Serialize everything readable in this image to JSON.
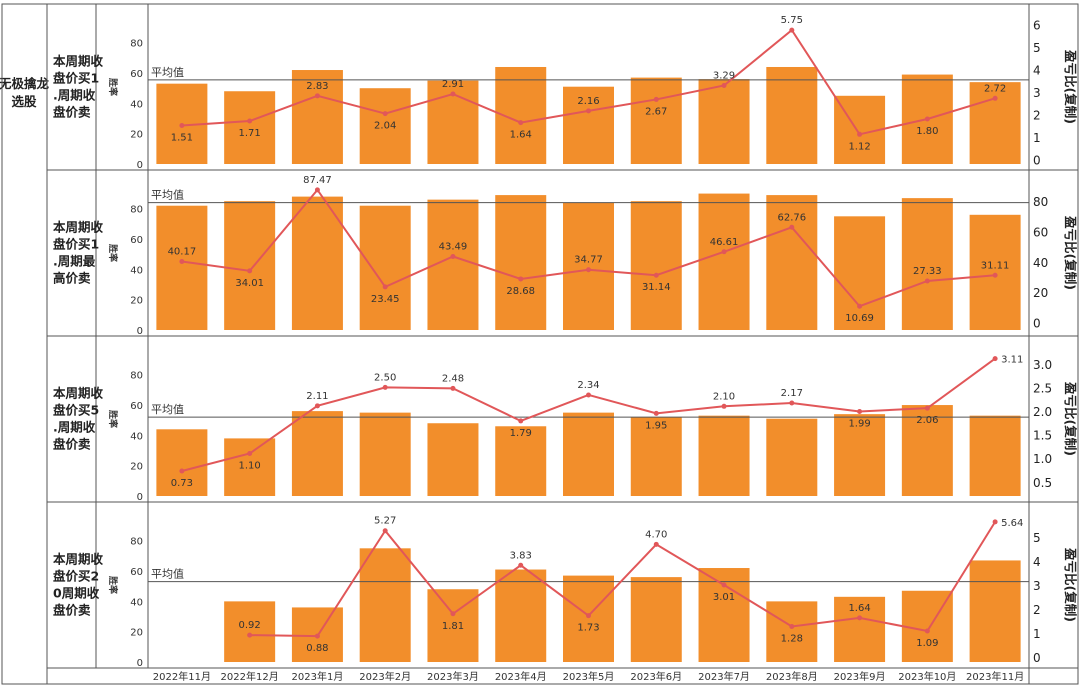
{
  "strategy_label": "无极擒龙选股",
  "y_axis_left_label": "胜率",
  "y_axis_right_label": "盈亏比(复制)",
  "avg_label": "平均值",
  "colors": {
    "bar": "#f28e2b",
    "line": "#e15759",
    "grid": "#555555"
  },
  "chart_data": [
    {
      "type": "bar",
      "row_label": "本周期收盘价买1.周期收盘价卖",
      "categories": [
        "2022年11月",
        "2022年12月",
        "2023年1月",
        "2023年2月",
        "2023年3月",
        "2023年4月",
        "2023年5月",
        "2023年6月",
        "2023年7月",
        "2023年8月",
        "2023年9月",
        "2023年10月",
        "2023年11月"
      ],
      "series": [
        {
          "axis": "left",
          "values": [
            53,
            48,
            62,
            50,
            55,
            64,
            51,
            57,
            56,
            64,
            45,
            59,
            54
          ]
        },
        {
          "axis": "right",
          "values": [
            1.51,
            1.71,
            2.83,
            2.04,
            2.91,
            1.64,
            2.16,
            2.67,
            3.29,
            5.75,
            1.12,
            1.8,
            2.72
          ]
        }
      ],
      "ylim": [
        0,
        95
      ],
      "y_ticks": [
        0,
        20,
        40,
        60,
        80
      ],
      "y2lim": [
        -0.2,
        6.2
      ],
      "y2_ticks": [
        0,
        1,
        2,
        3,
        4,
        5,
        6
      ],
      "avg_value": 55.5,
      "label_pos": [
        "below",
        "below",
        "above",
        "below",
        "above",
        "below",
        "above",
        "below",
        "above",
        "above",
        "below",
        "below",
        "above"
      ]
    },
    {
      "type": "bar",
      "row_label": "本周期收盘价买1.周期最高价卖",
      "categories": [
        "2022年11月",
        "2022年12月",
        "2023年1月",
        "2023年2月",
        "2023年3月",
        "2023年4月",
        "2023年5月",
        "2023年6月",
        "2023年7月",
        "2023年8月",
        "2023年9月",
        "2023年10月",
        "2023年11月"
      ],
      "series": [
        {
          "axis": "left",
          "values": [
            82,
            85,
            88,
            82,
            86,
            89,
            84,
            85,
            90,
            89,
            75,
            87,
            76
          ]
        },
        {
          "axis": "right",
          "values": [
            40.17,
            34.01,
            87.47,
            23.45,
            43.49,
            28.68,
            34.77,
            31.14,
            46.61,
            62.76,
            10.69,
            27.33,
            31.11
          ]
        }
      ],
      "ylim": [
        0,
        95
      ],
      "y_ticks": [
        0,
        20,
        40,
        60,
        80
      ],
      "y2lim": [
        -5,
        90
      ],
      "y2_ticks": [
        0,
        20,
        40,
        60,
        80
      ],
      "avg_value": 84,
      "label_pos": [
        "above",
        "below",
        "above",
        "below",
        "above",
        "below",
        "above",
        "below",
        "above",
        "above",
        "below",
        "above",
        "above"
      ]
    },
    {
      "type": "bar",
      "row_label": "本周期收盘价买5.周期收盘价卖",
      "categories": [
        "2022年11月",
        "2022年12月",
        "2023年1月",
        "2023年2月",
        "2023年3月",
        "2023年4月",
        "2023年5月",
        "2023年6月",
        "2023年7月",
        "2023年8月",
        "2023年9月",
        "2023年10月",
        "2023年11月"
      ],
      "series": [
        {
          "axis": "left",
          "values": [
            44,
            38,
            56,
            55,
            48,
            46,
            55,
            52,
            53,
            51,
            54,
            60,
            53
          ]
        },
        {
          "axis": "right",
          "values": [
            0.73,
            1.1,
            2.11,
            2.5,
            2.48,
            1.79,
            2.34,
            1.95,
            2.1,
            2.17,
            1.99,
            2.06,
            3.11
          ]
        }
      ],
      "ylim": [
        0,
        95
      ],
      "y_ticks": [
        0,
        20,
        40,
        60,
        80
      ],
      "y2lim": [
        0.2,
        3.25
      ],
      "y2_ticks": [
        0.5,
        1.0,
        1.5,
        2.0,
        2.5,
        3.0
      ],
      "avg_value": 52,
      "label_pos": [
        "below",
        "below",
        "above",
        "above",
        "above",
        "below",
        "above",
        "below",
        "above",
        "above",
        "below",
        "below",
        "right"
      ]
    },
    {
      "type": "bar",
      "row_label": "本周期收盘价买20周期收盘价卖",
      "categories": [
        "2022年11月",
        "2022年12月",
        "2023年1月",
        "2023年2月",
        "2023年3月",
        "2023年4月",
        "2023年5月",
        "2023年6月",
        "2023年7月",
        "2023年8月",
        "2023年9月",
        "2023年10月",
        "2023年11月"
      ],
      "series": [
        {
          "axis": "left",
          "values": [
            null,
            40,
            36,
            75,
            48,
            61,
            57,
            56,
            62,
            40,
            43,
            47,
            67
          ]
        },
        {
          "axis": "right",
          "values": [
            null,
            0.92,
            0.88,
            5.27,
            1.81,
            3.83,
            1.73,
            4.7,
            3.01,
            1.28,
            1.64,
            1.09,
            5.64
          ]
        }
      ],
      "ylim": [
        0,
        95
      ],
      "y_ticks": [
        0,
        20,
        40,
        60,
        80
      ],
      "y2lim": [
        -0.2,
        5.8
      ],
      "y2_ticks": [
        0,
        1,
        2,
        3,
        4,
        5
      ],
      "avg_value": 53,
      "label_pos": [
        "none",
        "above",
        "below",
        "above",
        "below",
        "above",
        "below",
        "above",
        "below",
        "below",
        "above",
        "below",
        "right"
      ]
    }
  ]
}
